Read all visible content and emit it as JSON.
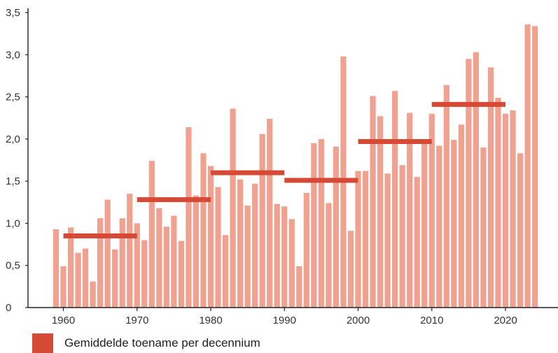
{
  "chart_data": {
    "type": "bar",
    "categories": [
      1959,
      1960,
      1961,
      1962,
      1963,
      1964,
      1965,
      1966,
      1967,
      1968,
      1969,
      1970,
      1971,
      1972,
      1973,
      1974,
      1975,
      1976,
      1977,
      1978,
      1979,
      1980,
      1981,
      1982,
      1983,
      1984,
      1985,
      1986,
      1987,
      1988,
      1989,
      1990,
      1991,
      1992,
      1993,
      1994,
      1995,
      1996,
      1997,
      1998,
      1999,
      2000,
      2001,
      2002,
      2003,
      2004,
      2005,
      2006,
      2007,
      2008,
      2009,
      2010,
      2011,
      2012,
      2013,
      2014,
      2015,
      2016,
      2017,
      2018,
      2019,
      2020,
      2021,
      2022,
      2023,
      2024
    ],
    "values": [
      0.93,
      0.49,
      0.95,
      0.65,
      0.7,
      0.31,
      1.06,
      1.28,
      0.69,
      1.06,
      1.35,
      1.0,
      0.8,
      1.74,
      1.18,
      0.96,
      1.09,
      0.79,
      2.14,
      1.33,
      1.83,
      1.68,
      1.43,
      0.86,
      2.36,
      1.52,
      1.21,
      1.47,
      2.06,
      2.24,
      1.23,
      1.2,
      1.05,
      0.49,
      1.36,
      1.95,
      2.0,
      1.24,
      1.91,
      2.98,
      0.91,
      1.62,
      1.62,
      2.51,
      2.27,
      1.59,
      2.57,
      1.69,
      2.31,
      1.55,
      1.97,
      2.3,
      1.92,
      2.64,
      1.99,
      2.17,
      2.95,
      3.03,
      1.9,
      2.85,
      2.49,
      2.3,
      2.34,
      1.83,
      3.36,
      3.34
    ],
    "decade_averages": [
      {
        "start": 1960,
        "end": 1970,
        "value": 0.85
      },
      {
        "start": 1970,
        "end": 1980,
        "value": 1.28
      },
      {
        "start": 1980,
        "end": 1990,
        "value": 1.6
      },
      {
        "start": 1990,
        "end": 2000,
        "value": 1.51
      },
      {
        "start": 2000,
        "end": 2010,
        "value": 1.97
      },
      {
        "start": 2010,
        "end": 2020,
        "value": 2.41
      }
    ],
    "x_ticks": [
      1960,
      1970,
      1980,
      1990,
      2000,
      2010,
      2020
    ],
    "x_tick_labels": [
      "1960",
      "1970",
      "1980",
      "1990",
      "2000",
      "2010",
      "2020"
    ],
    "y_ticks": [
      0,
      0.5,
      1.0,
      1.5,
      2.0,
      2.5,
      3.0,
      3.5
    ],
    "y_tick_labels": [
      "0",
      "0,5",
      "1,0",
      "1,5",
      "2,0",
      "2,5",
      "3,0",
      "3,5"
    ],
    "ylim": [
      0,
      3.5
    ],
    "xlim": [
      1958.2,
      2025.0
    ],
    "grid": false,
    "legend": {
      "position": "bottom-left",
      "label": "Gemiddelde toename per decennium"
    },
    "colors": {
      "bars": "#f0a190",
      "decade_line": "#d64a35",
      "axis": "#222222"
    }
  }
}
